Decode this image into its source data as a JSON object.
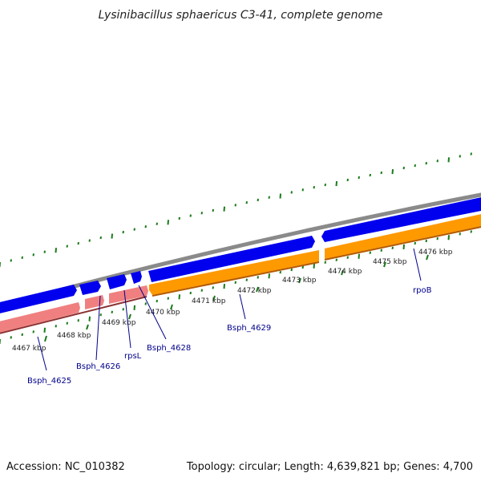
{
  "title": "Lysinibacillus sphaericus C3-41, complete genome",
  "footer": {
    "accession": "Accession: NC_010382",
    "summary": "Topology: circular; Length: 4,639,821 bp; Genes: 4,700"
  },
  "colors": {
    "backbone": "#8a8a8a",
    "forward_gene": "#0000ee",
    "reverse_gene_pink": "#f08080",
    "reverse_gene_orange": "#ff9900",
    "gc_marks": "#1a7a1a",
    "label_color": "#00008b",
    "leader_color": "#00008b"
  },
  "ruler": {
    "ticks": [
      "4467 kbp",
      "4468 kbp",
      "4469 kbp",
      "4470 kbp",
      "4471 kbp",
      "4472 kbp",
      "4473 kbp",
      "4474 kbp",
      "4475 kbp",
      "4476 kbp"
    ]
  },
  "genes": [
    {
      "name": "Bsph_4625",
      "strand": "reverse",
      "color": "pink"
    },
    {
      "name": "Bsph_4626",
      "strand": "forward",
      "color": "blue"
    },
    {
      "name": "rpsL",
      "strand": "forward",
      "color": "blue"
    },
    {
      "name": "Bsph_4628",
      "strand": "forward",
      "color": "blue"
    },
    {
      "name": "Bsph_4629",
      "strand": "reverse",
      "color": "orange"
    },
    {
      "name": "rpoB",
      "strand": "forward",
      "color": "blue"
    }
  ]
}
